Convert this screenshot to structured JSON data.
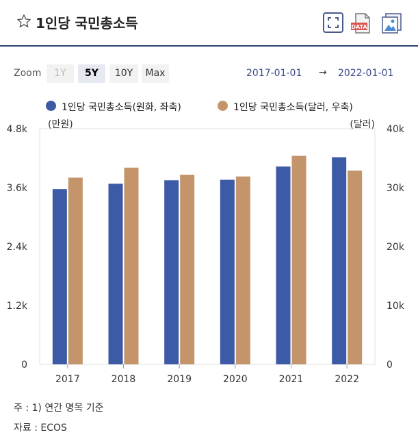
{
  "header": {
    "title": "1인당 국민총소득",
    "data_icon_text": "DATA"
  },
  "zoom": {
    "label": "Zoom",
    "buttons": [
      {
        "label": "1Y",
        "state": "disabled"
      },
      {
        "label": "5Y",
        "state": "active"
      },
      {
        "label": "10Y",
        "state": "normal"
      },
      {
        "label": "Max",
        "state": "normal"
      }
    ]
  },
  "range": {
    "start": "2017-01-01",
    "arrow": "→",
    "end": "2022-01-01"
  },
  "colors": {
    "won": "#3c5aa6",
    "dollar": "#c4956a",
    "axis_text": "#333333",
    "grid": "#e0e0e0"
  },
  "chart_data": {
    "type": "bar",
    "categories": [
      "2017",
      "2018",
      "2019",
      "2020",
      "2021",
      "2022"
    ],
    "series": [
      {
        "name": "1인당 국민총소득(원화, 좌축)",
        "axis": "left",
        "values": [
          3570,
          3680,
          3750,
          3760,
          4030,
          4220
        ]
      },
      {
        "name": "1인당 국민총소득(달러, 우축)",
        "axis": "right",
        "values": [
          31700,
          33400,
          32200,
          31900,
          35400,
          32900
        ]
      }
    ],
    "y_left": {
      "label": "(만원)",
      "ylim": [
        0,
        4800
      ],
      "ticks": [
        "0",
        "1.2k",
        "2.4k",
        "3.6k",
        "4.8k"
      ]
    },
    "y_right": {
      "label": "(달러)",
      "ylim": [
        0,
        40000
      ],
      "ticks": [
        "0",
        "10k",
        "20k",
        "30k",
        "40k"
      ]
    },
    "grid": false,
    "legend": "top"
  },
  "notes": {
    "note": "주 : 1) 연간 명목 기준",
    "source": "자료 : ECOS"
  }
}
